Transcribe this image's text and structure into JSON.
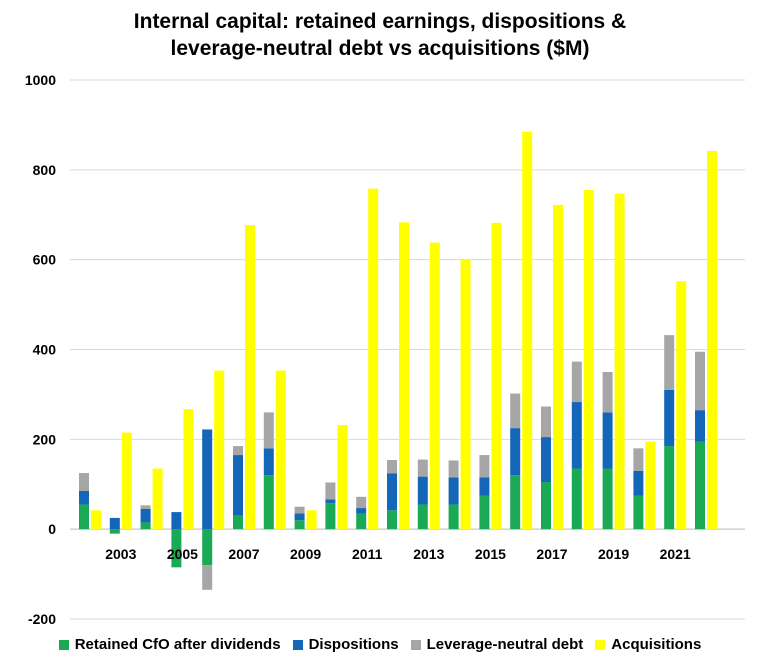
{
  "chart_data": {
    "type": "bar",
    "title_lines": [
      "Internal capital: retained earnings, dispositions &",
      "leverage-neutral debt vs acquisitions ($M)"
    ],
    "years": [
      2002,
      2003,
      2004,
      2005,
      2006,
      2007,
      2008,
      2009,
      2010,
      2011,
      2012,
      2013,
      2014,
      2015,
      2016,
      2017,
      2018,
      2019,
      2020,
      2021,
      2022
    ],
    "x_tick_labels": [
      "2003",
      "2005",
      "2007",
      "2009",
      "2011",
      "2013",
      "2015",
      "2017",
      "2019",
      "2021"
    ],
    "x_tick_years": [
      2003,
      2005,
      2007,
      2009,
      2011,
      2013,
      2015,
      2017,
      2019,
      2021
    ],
    "ylim": [
      -200,
      1000
    ],
    "y_ticks": [
      -200,
      0,
      200,
      400,
      600,
      800,
      1000
    ],
    "y_tick_labels": [
      "-200",
      "0",
      "200",
      "400",
      "600",
      "800",
      "1000"
    ],
    "grid": true,
    "legend_position": "bottom",
    "stacked_series": [
      {
        "name": "Retained CfO after dividends",
        "color": "#1aaa55",
        "values": [
          55,
          -10,
          15,
          -85,
          -80,
          30,
          120,
          20,
          58,
          35,
          42,
          55,
          55,
          75,
          120,
          105,
          135,
          135,
          75,
          185,
          195
        ]
      },
      {
        "name": "Dispositions",
        "color": "#1467b8",
        "values": [
          30,
          25,
          30,
          38,
          222,
          135,
          60,
          15,
          8,
          12,
          82,
          62,
          60,
          40,
          105,
          100,
          148,
          125,
          55,
          125,
          70
        ]
      },
      {
        "name": "Leverage-neutral debt",
        "color": "#a6a6a6",
        "values": [
          40,
          0,
          8,
          0,
          -55,
          20,
          80,
          15,
          38,
          25,
          30,
          38,
          38,
          50,
          77,
          68,
          90,
          90,
          50,
          122,
          130
        ]
      }
    ],
    "acquisitions": {
      "name": "Acquisitions",
      "color": "#ffff00",
      "values": [
        42,
        215,
        135,
        267,
        353,
        677,
        353,
        42,
        232,
        758,
        683,
        638,
        600,
        682,
        885,
        722,
        755,
        747,
        195,
        552,
        842
      ]
    }
  },
  "legend": [
    {
      "label": "Retained CfO after dividends",
      "color": "#1aaa55"
    },
    {
      "label": "Dispositions",
      "color": "#1467b8"
    },
    {
      "label": "Leverage-neutral debt",
      "color": "#a6a6a6"
    },
    {
      "label": "Acquisitions",
      "color": "#ffff00"
    }
  ]
}
